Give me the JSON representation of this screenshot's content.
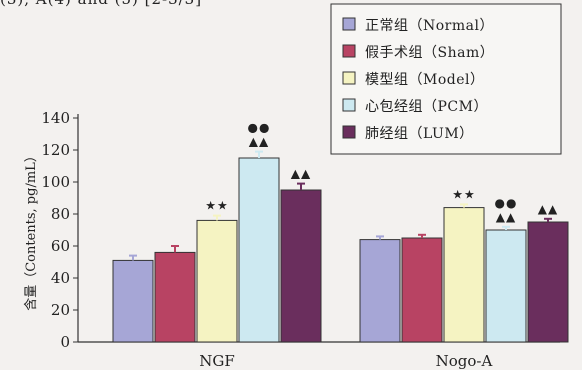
{
  "header_fragment": "(3), A(4) and (5) [2-3/3]",
  "chart_data": {
    "type": "bar",
    "categories": [
      "NGF",
      "Nogo-A"
    ],
    "series": [
      {
        "name": "正常组（Normal）",
        "color": "#a6a6d6",
        "values": [
          51,
          64
        ],
        "errors": [
          3,
          2
        ],
        "marks": [
          "",
          ""
        ]
      },
      {
        "name": "假手术组（Sham）",
        "color": "#b84363",
        "values": [
          56,
          65
        ],
        "errors": [
          4,
          2
        ],
        "marks": [
          "",
          ""
        ]
      },
      {
        "name": "模型组（Model）",
        "color": "#f5f3c2",
        "values": [
          76,
          84
        ],
        "errors": [
          3,
          2
        ],
        "marks": [
          "★★",
          "★★"
        ]
      },
      {
        "name": "心包经组（PCM）",
        "color": "#cde9f1",
        "values": [
          115,
          70
        ],
        "errors": [
          4,
          2
        ],
        "marks": [
          "●●\n▲▲",
          "●●\n▲▲"
        ]
      },
      {
        "name": "肺经组（LUM）",
        "color": "#6a2e5d",
        "values": [
          95,
          75
        ],
        "errors": [
          4,
          2
        ],
        "marks": [
          "▲▲",
          "▲▲"
        ]
      }
    ],
    "ylabel": "含量（Contents, pg/mL）",
    "ylim": [
      0,
      140
    ],
    "yticks": [
      0,
      20,
      40,
      60,
      80,
      100,
      120,
      140
    ],
    "legend_position": "top-right",
    "grid": false
  }
}
